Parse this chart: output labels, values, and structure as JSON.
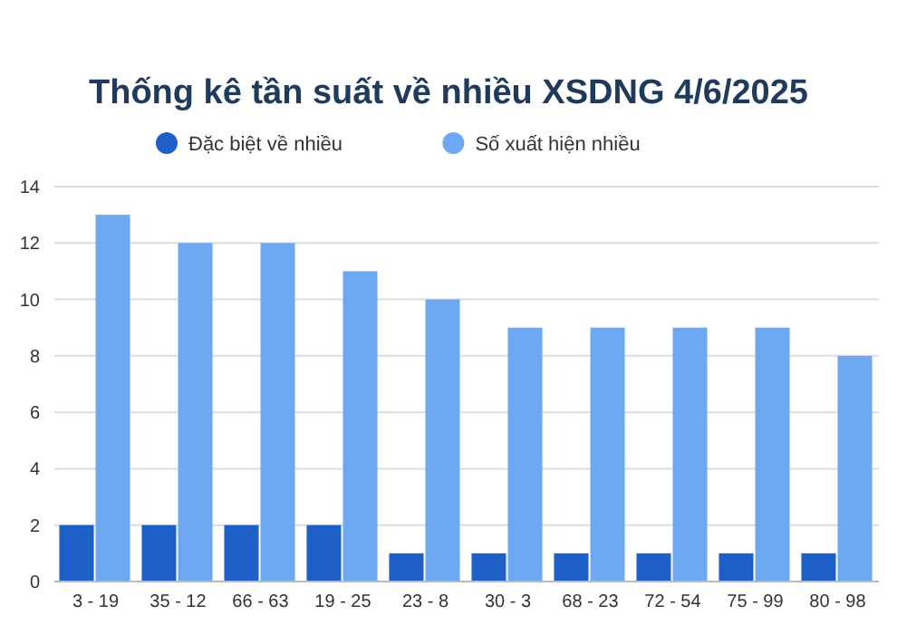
{
  "chart_data": {
    "type": "bar",
    "title": "Thống kê tần suất về nhiều XSDNG 4/6/2025",
    "categories": [
      "3 - 19",
      "35 - 12",
      "66 - 63",
      "19 - 25",
      "23 - 8",
      "30 - 3",
      "68 - 23",
      "72 - 54",
      "75 - 99",
      "80 - 98"
    ],
    "series": [
      {
        "name": "Đặc biệt về nhiều",
        "color": "#1f5fc8",
        "values": [
          2,
          2,
          2,
          2,
          1,
          1,
          1,
          1,
          1,
          1
        ]
      },
      {
        "name": "Số xuất hiện nhiều",
        "color": "#6ea8f2",
        "values": [
          13,
          12,
          12,
          11,
          10,
          9,
          9,
          9,
          9,
          8
        ]
      }
    ],
    "ylim": [
      0,
      14
    ],
    "yticks": [
      0,
      2,
      4,
      6,
      8,
      10,
      12,
      14
    ],
    "grid": "y",
    "legend": "top"
  }
}
